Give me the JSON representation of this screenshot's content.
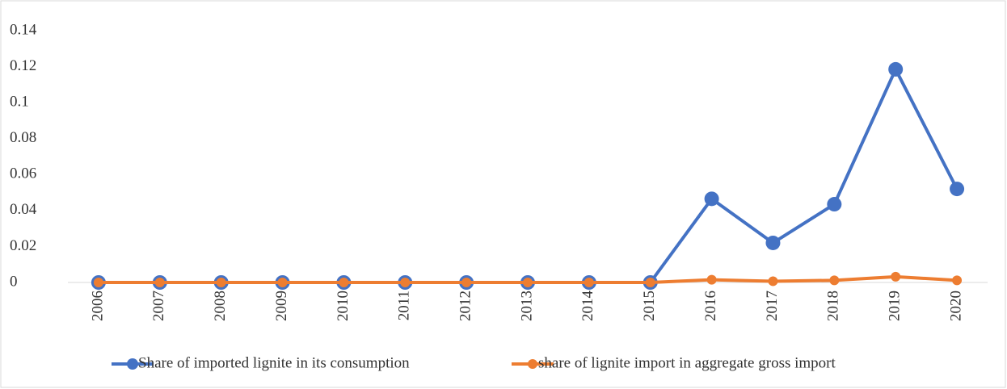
{
  "chart_data": {
    "type": "line",
    "categories": [
      "2006",
      "2007",
      "2008",
      "2009",
      "2010",
      "2011",
      "2012",
      "2013",
      "2014",
      "2015",
      "2016",
      "2017",
      "2018",
      "2019",
      "2020"
    ],
    "series": [
      {
        "name": "Share of imported lignite in its consumption",
        "color": "#4472c4",
        "values": [
          0,
          0,
          0,
          0,
          0,
          0,
          0,
          0,
          0,
          0,
          0.0465,
          0.022,
          0.0435,
          0.1185,
          0.052
        ]
      },
      {
        "name": "share of lignite import in aggregate gross import",
        "color": "#ed7d31",
        "values": [
          0,
          0,
          0,
          0,
          0,
          0,
          0,
          0,
          0,
          0,
          0.0015,
          0.0007,
          0.0012,
          0.0032,
          0.0012
        ]
      }
    ],
    "ylim": [
      0,
      0.14
    ],
    "yticks": [
      0,
      0.02,
      0.04,
      0.06,
      0.08,
      0.1,
      0.12,
      0.14
    ],
    "legend": "bottom"
  }
}
